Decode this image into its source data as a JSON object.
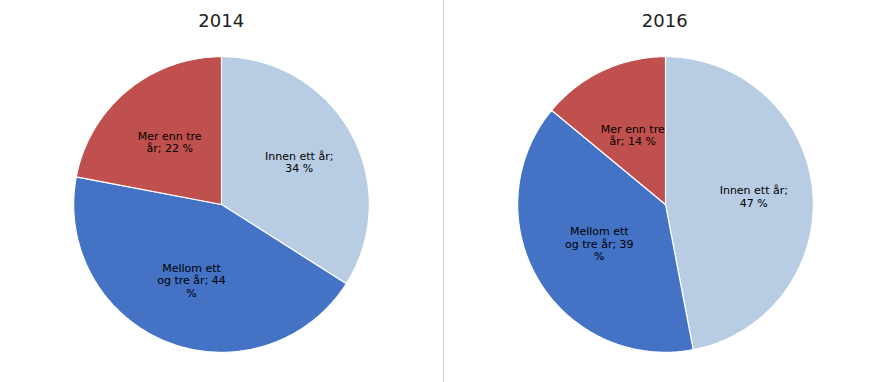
{
  "chart_data": [
    {
      "type": "pie",
      "title": "2014",
      "values": [
        34,
        44,
        22
      ],
      "value_labels": [
        "Innen ett år;\n34 %",
        "Mellom ett\nog tre år; 44\n%",
        "Mer enn tre\når; 22 %"
      ],
      "colors": [
        "#b8cce4",
        "#4472c4",
        "#c0504d"
      ],
      "data_labels": true
    },
    {
      "type": "pie",
      "title": "2016",
      "values": [
        47,
        39,
        14
      ],
      "value_labels": [
        "Innen ett år;\n47 %",
        "Mellom ett\nog tre år; 39\n%",
        "Mer enn tre\når; 14 %"
      ],
      "colors": [
        "#b8cce4",
        "#4472c4",
        "#c0504d"
      ],
      "data_labels": true
    }
  ]
}
